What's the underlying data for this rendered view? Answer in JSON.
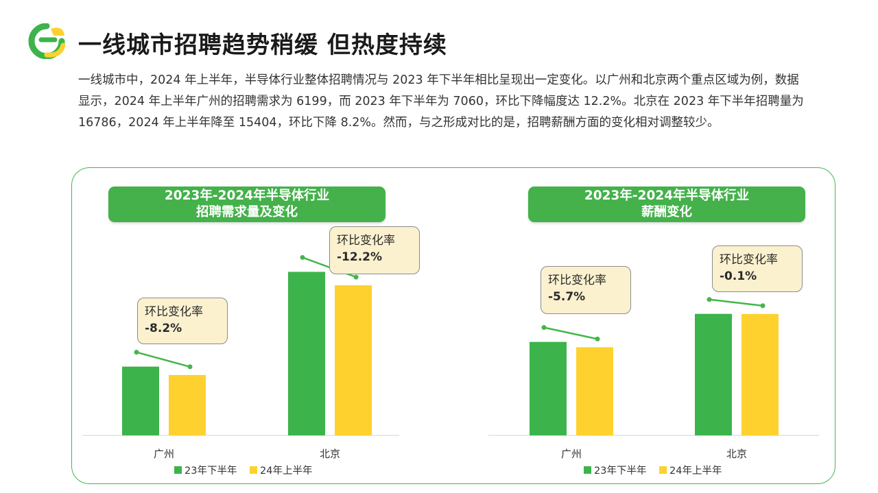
{
  "title": "一线城市招聘趋势稍缓 但热度持续",
  "intro": "一线城市中，2024 年上半年，半导体行业整体招聘情况与 2023 年下半年相比呈现出一定变化。以广州和北京两个重点区域为例，数据显示，2024 年上半年广州的招聘需求为 6199，而 2023 年下半年为 7060，环比下降幅度达 12.2%。北京在 2023 年下半年招聘量为 16786，2024 年上半年降至 15404，环比下降 8.2%。然而，与之形成对比的是，招聘薪酬方面的变化相对调整较少。",
  "colors": {
    "green": "#3cb44b",
    "yellow": "#fed12f",
    "accent": "#43b649"
  },
  "chart_data": [
    {
      "type": "bar",
      "title_line1": "2023年-2024年半导体行业",
      "title_line2": "招聘需求量及变化",
      "categories": [
        "广州",
        "北京"
      ],
      "series": [
        {
          "name": "23年下半年",
          "values": [
            7060,
            16786
          ]
        },
        {
          "name": "24年上半年",
          "values": [
            6199,
            15404
          ]
        }
      ],
      "ylim": [
        0,
        19000
      ],
      "callouts": [
        {
          "label": "环比变化率",
          "rate": "-8.2%"
        },
        {
          "label": "环比变化率",
          "rate": "-12.2%"
        }
      ],
      "legend": "bottom"
    },
    {
      "type": "bar",
      "title_line1": "2023年-2024年半导体行业",
      "title_line2": "薪酬变化",
      "categories": [
        "广州",
        "北京"
      ],
      "series": [
        {
          "name": "23年下半年",
          "values": [
            100,
            130
          ]
        },
        {
          "name": "24年上半年",
          "values": [
            94.3,
            129.87
          ]
        }
      ],
      "ylim": [
        0,
        198
      ],
      "callouts": [
        {
          "label": "环比变化率",
          "rate": "-5.7%"
        },
        {
          "label": "环比变化率",
          "rate": "-0.1%"
        }
      ],
      "legend": "bottom"
    }
  ]
}
